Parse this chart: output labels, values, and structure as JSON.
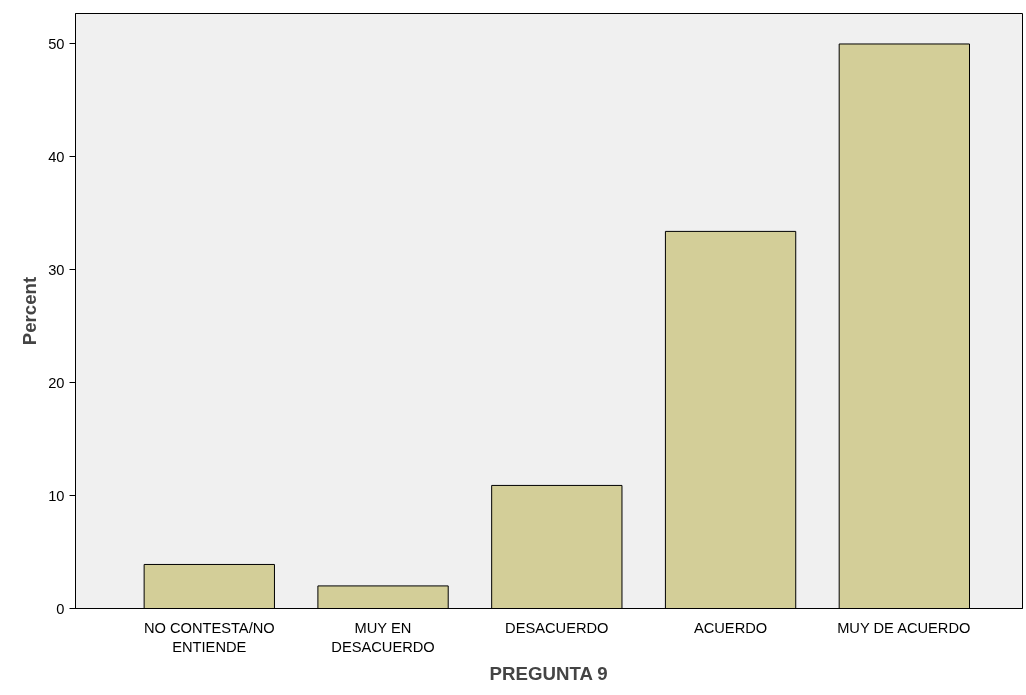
{
  "chart_data": {
    "type": "bar",
    "xlabel": "PREGUNTA 9",
    "ylabel": "Percent",
    "categories": [
      "NO CONTESTA/NO\nENTIENDE",
      "MUY EN\nDESACUERDO",
      "DESACUERDO",
      "ACUERDO",
      "MUY DE ACUERDO"
    ],
    "values": [
      3.9,
      2.0,
      10.9,
      33.4,
      50.0
    ],
    "color": "#d3ce98",
    "ylim": [
      0,
      52.7
    ],
    "yticks": [
      0,
      10,
      20,
      30,
      40,
      50
    ],
    "grid": false
  }
}
